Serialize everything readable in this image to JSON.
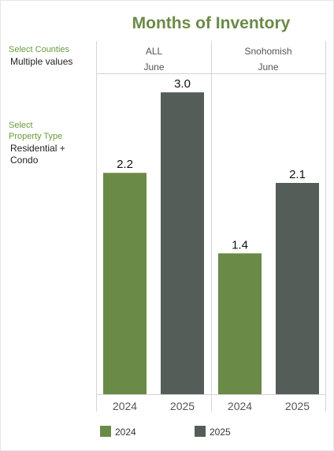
{
  "title": "Months of Inventory",
  "filters": {
    "counties_label": "Select Counties",
    "counties_value": "Multiple values",
    "property_label_line1": "Select",
    "property_label_line2": "Property Type",
    "property_value_line1": "Residential +",
    "property_value_line2": "Condo"
  },
  "colors": {
    "2024": "#6a8a47",
    "2025": "#555d59"
  },
  "chart_data": {
    "type": "bar",
    "ylim": [
      0,
      3.15
    ],
    "panels": [
      {
        "county": "ALL",
        "month": "June",
        "categories": [
          "2024",
          "2025"
        ],
        "values": [
          2.2,
          3.0
        ],
        "labels": [
          "2.2",
          "3.0"
        ]
      },
      {
        "county": "Snohomish",
        "month": "June",
        "categories": [
          "2024",
          "2025"
        ],
        "values": [
          1.4,
          2.1
        ],
        "labels": [
          "1.4",
          "2.1"
        ]
      }
    ],
    "legend": [
      {
        "name": "2024",
        "color": "#6a8a47"
      },
      {
        "name": "2025",
        "color": "#555d59"
      }
    ]
  }
}
